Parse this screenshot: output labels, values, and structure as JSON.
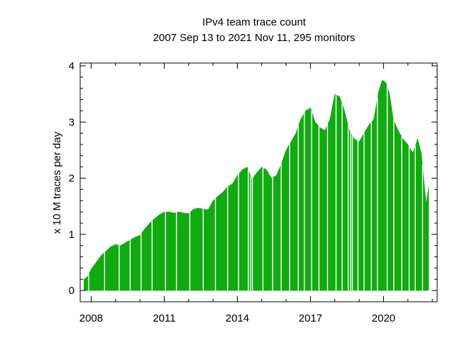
{
  "chart_data": {
    "type": "area",
    "title": "IPv4 team trace count",
    "subtitle": "2007 Sep 13 to 2021 Nov 11, 295 monitors",
    "xlabel": "",
    "ylabel": "x 10 M traces per day",
    "xlim": [
      2007.55,
      2022.2
    ],
    "ylim": [
      -0.2,
      4.05
    ],
    "x_ticks": [
      2008,
      2011,
      2014,
      2017,
      2020
    ],
    "x_tick_labels": [
      "2008",
      "2011",
      "2014",
      "2017",
      "2020"
    ],
    "y_ticks": [
      0,
      1,
      2,
      3,
      4
    ],
    "y_tick_labels": [
      "0",
      "1",
      "2",
      "3",
      "4"
    ],
    "color": "#11aa11",
    "x": [
      2007.7,
      2007.85,
      2008.0,
      2008.2,
      2008.4,
      2008.6,
      2008.8,
      2009.0,
      2009.2,
      2009.4,
      2009.6,
      2009.8,
      2010.0,
      2010.2,
      2010.4,
      2010.6,
      2010.8,
      2011.0,
      2011.2,
      2011.4,
      2011.6,
      2011.8,
      2012.0,
      2012.2,
      2012.4,
      2012.6,
      2012.8,
      2013.0,
      2013.2,
      2013.4,
      2013.6,
      2013.8,
      2014.0,
      2014.2,
      2014.4,
      2014.6,
      2014.8,
      2015.0,
      2015.2,
      2015.4,
      2015.6,
      2015.8,
      2016.0,
      2016.2,
      2016.4,
      2016.6,
      2016.8,
      2017.0,
      2017.2,
      2017.4,
      2017.6,
      2017.8,
      2018.0,
      2018.2,
      2018.4,
      2018.6,
      2018.8,
      2019.0,
      2019.2,
      2019.4,
      2019.6,
      2019.8,
      2019.95,
      2020.1,
      2020.25,
      2020.4,
      2020.6,
      2020.8,
      2021.0,
      2021.2,
      2021.4,
      2021.55,
      2021.75,
      2021.85
    ],
    "values": [
      0.2,
      0.25,
      0.38,
      0.5,
      0.62,
      0.7,
      0.78,
      0.82,
      0.8,
      0.85,
      0.9,
      0.95,
      0.98,
      1.1,
      1.2,
      1.28,
      1.35,
      1.4,
      1.4,
      1.38,
      1.4,
      1.38,
      1.37,
      1.45,
      1.47,
      1.45,
      1.44,
      1.6,
      1.68,
      1.75,
      1.85,
      1.9,
      2.05,
      2.15,
      2.2,
      1.98,
      2.1,
      2.2,
      2.15,
      2.0,
      2.05,
      2.25,
      2.5,
      2.65,
      2.8,
      3.05,
      3.2,
      3.25,
      3.0,
      2.9,
      2.85,
      3.05,
      3.5,
      3.45,
      3.2,
      2.85,
      2.7,
      2.65,
      2.8,
      2.95,
      3.05,
      3.55,
      3.75,
      3.7,
      3.5,
      3.05,
      2.85,
      2.7,
      2.6,
      2.45,
      2.7,
      2.45,
      1.55,
      1.85
    ],
    "dips": [
      2007.9,
      2008.55,
      2009.15,
      2009.6,
      2010.05,
      2010.5,
      2011.05,
      2011.5,
      2012.05,
      2012.6,
      2013.1,
      2013.6,
      2014.05,
      2014.45,
      2014.55,
      2014.62,
      2015.05,
      2015.45,
      2015.8,
      2016.15,
      2016.5,
      2016.75,
      2017.05,
      2017.35,
      2017.7,
      2018.05,
      2018.3,
      2018.55,
      2018.65,
      2018.72,
      2018.95,
      2019.2,
      2019.5,
      2019.75,
      2020.15,
      2020.42,
      2020.75,
      2021.05,
      2021.3,
      2021.6
    ],
    "grid": false,
    "legend": "none"
  }
}
